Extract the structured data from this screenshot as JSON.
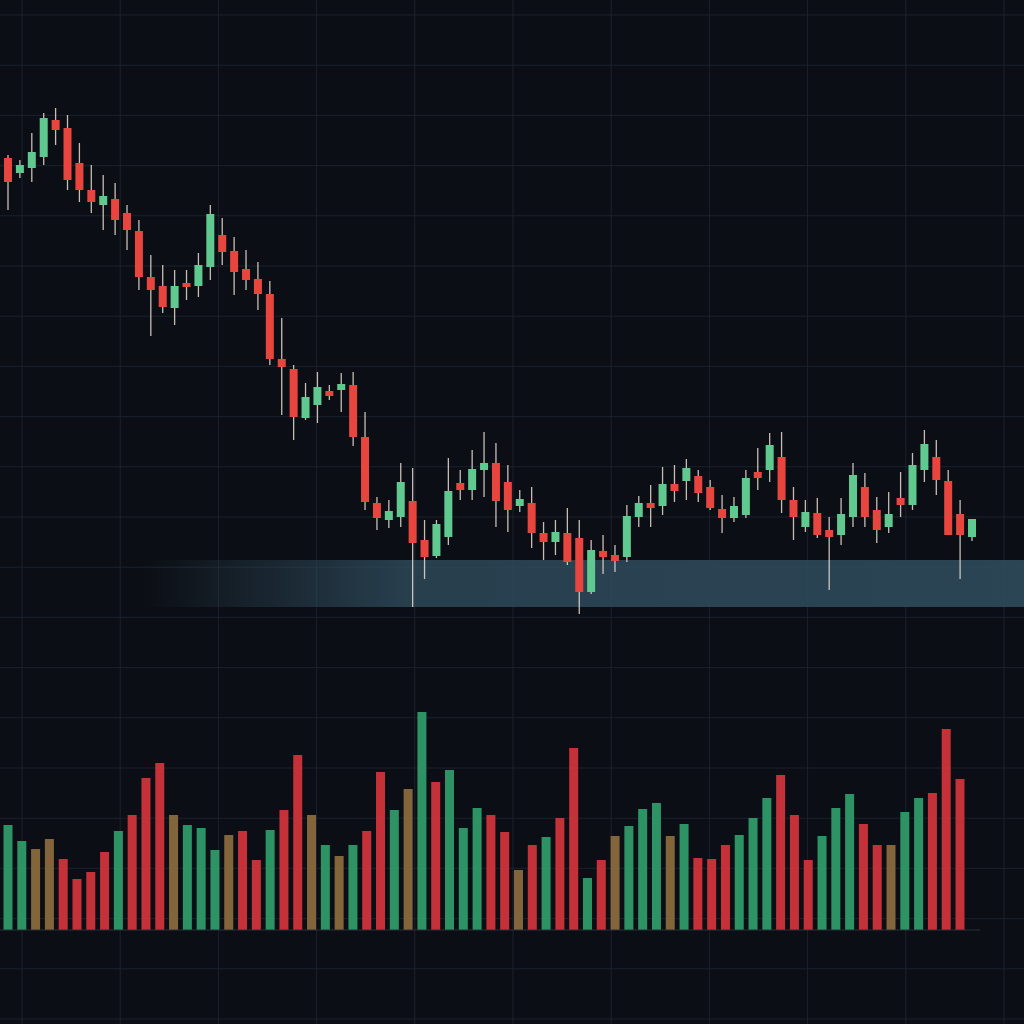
{
  "chart_data": [
    {
      "type": "candlestick",
      "title": "",
      "xlabel": "",
      "ylabel": "",
      "ylim": [
        0,
        100
      ],
      "grid": true,
      "legend": "none",
      "colors": {
        "up": "#5fc98f",
        "down": "#e8453f",
        "background": "#0b0e14",
        "grid": "#1b212c",
        "support_zone": "#2f4b5c"
      },
      "support_zone": {
        "from": 39.3,
        "to": 44.0
      },
      "ohlc_fields": [
        "open",
        "high",
        "low",
        "close"
      ],
      "candles": [
        [
          84.2,
          84.5,
          79.0,
          81.8
        ],
        [
          82.7,
          84.0,
          82.2,
          83.5
        ],
        [
          83.2,
          86.7,
          81.8,
          84.8
        ],
        [
          84.3,
          88.7,
          83.5,
          88.2
        ],
        [
          88.0,
          89.2,
          85.5,
          87.0
        ],
        [
          87.2,
          88.5,
          81.0,
          82.0
        ],
        [
          83.7,
          85.7,
          79.8,
          81.0
        ],
        [
          81.0,
          83.5,
          78.7,
          79.8
        ],
        [
          79.5,
          82.5,
          77.0,
          80.4
        ],
        [
          80.1,
          81.7,
          76.5,
          78.0
        ],
        [
          78.7,
          79.5,
          75.0,
          77.0
        ],
        [
          76.9,
          78.0,
          71.0,
          72.3
        ],
        [
          72.3,
          74.5,
          66.4,
          71.0
        ],
        [
          71.4,
          73.5,
          68.7,
          69.3
        ],
        [
          69.2,
          73.0,
          67.5,
          71.4
        ],
        [
          71.7,
          73.0,
          70.0,
          71.3
        ],
        [
          71.4,
          74.7,
          70.3,
          73.5
        ],
        [
          73.3,
          79.5,
          72.0,
          78.6
        ],
        [
          76.5,
          78.2,
          73.5,
          74.8
        ],
        [
          74.9,
          76.3,
          70.5,
          72.8
        ],
        [
          73.1,
          75.0,
          71.0,
          72.0
        ],
        [
          72.1,
          73.8,
          69.0,
          70.6
        ],
        [
          70.6,
          71.9,
          63.5,
          64.1
        ],
        [
          64.1,
          68.2,
          58.5,
          63.3
        ],
        [
          63.1,
          63.5,
          56.0,
          58.3
        ],
        [
          58.2,
          61.7,
          58.0,
          60.3
        ],
        [
          59.5,
          62.8,
          57.7,
          61.3
        ],
        [
          60.9,
          61.5,
          60.0,
          60.4
        ],
        [
          61.0,
          62.7,
          58.8,
          61.6
        ],
        [
          61.5,
          62.8,
          55.4,
          56.3
        ],
        [
          56.3,
          58.8,
          49.0,
          49.8
        ],
        [
          49.7,
          50.3,
          47.0,
          48.2
        ],
        [
          48.0,
          50.0,
          47.2,
          48.9
        ],
        [
          48.3,
          53.7,
          47.3,
          51.8
        ],
        [
          49.9,
          53.2,
          39.3,
          45.7
        ],
        [
          46.0,
          48.0,
          42.1,
          44.3
        ],
        [
          44.4,
          48.0,
          44.2,
          47.6
        ],
        [
          46.3,
          54.2,
          45.5,
          50.9
        ],
        [
          51.7,
          53.0,
          50.0,
          51.0
        ],
        [
          51.0,
          55.0,
          50.0,
          53.1
        ],
        [
          53.0,
          56.8,
          50.3,
          53.7
        ],
        [
          53.7,
          55.7,
          47.3,
          49.9
        ],
        [
          51.8,
          53.5,
          46.8,
          49.0
        ],
        [
          49.4,
          51.0,
          48.8,
          50.1
        ],
        [
          49.7,
          51.3,
          45.2,
          46.7
        ],
        [
          46.7,
          47.8,
          44.0,
          45.8
        ],
        [
          45.8,
          48.0,
          44.5,
          46.8
        ],
        [
          46.7,
          49.2,
          43.5,
          43.8
        ],
        [
          46.2,
          48.0,
          38.6,
          40.8
        ],
        [
          40.8,
          46.0,
          40.6,
          45.0
        ],
        [
          44.9,
          46.5,
          42.6,
          44.3
        ],
        [
          44.5,
          45.5,
          42.8,
          43.9
        ],
        [
          44.3,
          49.5,
          43.8,
          48.4
        ],
        [
          48.3,
          50.4,
          47.3,
          49.7
        ],
        [
          49.7,
          51.5,
          47.3,
          49.2
        ],
        [
          49.4,
          53.3,
          48.5,
          51.6
        ],
        [
          51.6,
          53.5,
          49.8,
          50.9
        ],
        [
          51.9,
          54.1,
          50.0,
          53.2
        ],
        [
          52.4,
          53.0,
          49.8,
          50.7
        ],
        [
          51.3,
          52.0,
          49.0,
          49.2
        ],
        [
          49.1,
          50.5,
          46.7,
          48.2
        ],
        [
          48.2,
          50.3,
          47.8,
          49.4
        ],
        [
          48.5,
          53.0,
          48.2,
          52.2
        ],
        [
          52.8,
          55.2,
          51.0,
          52.2
        ],
        [
          53.0,
          56.7,
          51.8,
          55.5
        ],
        [
          54.3,
          56.8,
          48.7,
          50.0
        ],
        [
          50.0,
          51.3,
          46.0,
          48.3
        ],
        [
          47.3,
          50.0,
          46.8,
          48.8
        ],
        [
          48.7,
          50.2,
          46.2,
          46.5
        ],
        [
          47.0,
          48.3,
          41.0,
          46.3
        ],
        [
          46.5,
          50.2,
          45.5,
          48.6
        ],
        [
          48.3,
          53.7,
          47.3,
          52.5
        ],
        [
          51.3,
          52.7,
          47.3,
          48.3
        ],
        [
          49.0,
          50.3,
          45.7,
          47.0
        ],
        [
          47.3,
          50.8,
          46.7,
          48.6
        ],
        [
          50.2,
          52.8,
          48.3,
          49.5
        ],
        [
          49.5,
          54.7,
          49.0,
          53.5
        ],
        [
          53.0,
          57.0,
          51.8,
          55.6
        ],
        [
          54.3,
          56.0,
          50.5,
          52.0
        ],
        [
          51.9,
          53.0,
          46.5,
          46.5
        ],
        [
          48.6,
          50.0,
          42.1,
          46.5
        ],
        [
          46.3,
          48.1,
          45.9,
          48.1
        ]
      ]
    },
    {
      "type": "bar",
      "title": "",
      "xlabel": "",
      "ylabel": "",
      "ylim": [
        0,
        230
      ],
      "grid": true,
      "legend": "none",
      "colors": {
        "g": "#2f9a68",
        "r": "#d0343a",
        "o": "#8a6a3e"
      },
      "values": [
        105,
        89,
        81,
        91,
        71,
        51,
        58,
        78,
        99,
        115,
        152,
        167,
        115,
        105,
        102,
        80,
        95,
        99,
        70,
        100,
        120,
        175,
        115,
        85,
        74,
        85,
        99,
        158,
        120,
        141,
        218,
        148,
        160,
        102,
        122,
        115,
        98,
        60,
        85,
        93,
        112,
        182,
        52,
        70,
        94,
        104,
        121,
        127,
        94,
        106,
        72,
        71,
        85,
        95,
        112,
        132,
        155,
        115,
        70,
        94,
        122,
        136,
        106,
        85,
        85,
        118,
        132,
        137,
        201,
        151
      ],
      "bar_colors": [
        "g",
        "g",
        "o",
        "o",
        "r",
        "r",
        "r",
        "r",
        "g",
        "r",
        "r",
        "r",
        "o",
        "g",
        "g",
        "g",
        "o",
        "r",
        "r",
        "g",
        "r",
        "r",
        "o",
        "g",
        "o",
        "g",
        "r",
        "r",
        "g",
        "o",
        "g",
        "r",
        "g",
        "g",
        "g",
        "r",
        "r",
        "o",
        "r",
        "g",
        "r",
        "r",
        "g",
        "r",
        "o",
        "g",
        "g",
        "g",
        "o",
        "g",
        "r",
        "r",
        "r",
        "g",
        "g",
        "g",
        "r",
        "r",
        "r",
        "g",
        "g",
        "g",
        "r",
        "r",
        "o",
        "g",
        "g",
        "r",
        "r",
        "r"
      ]
    }
  ]
}
